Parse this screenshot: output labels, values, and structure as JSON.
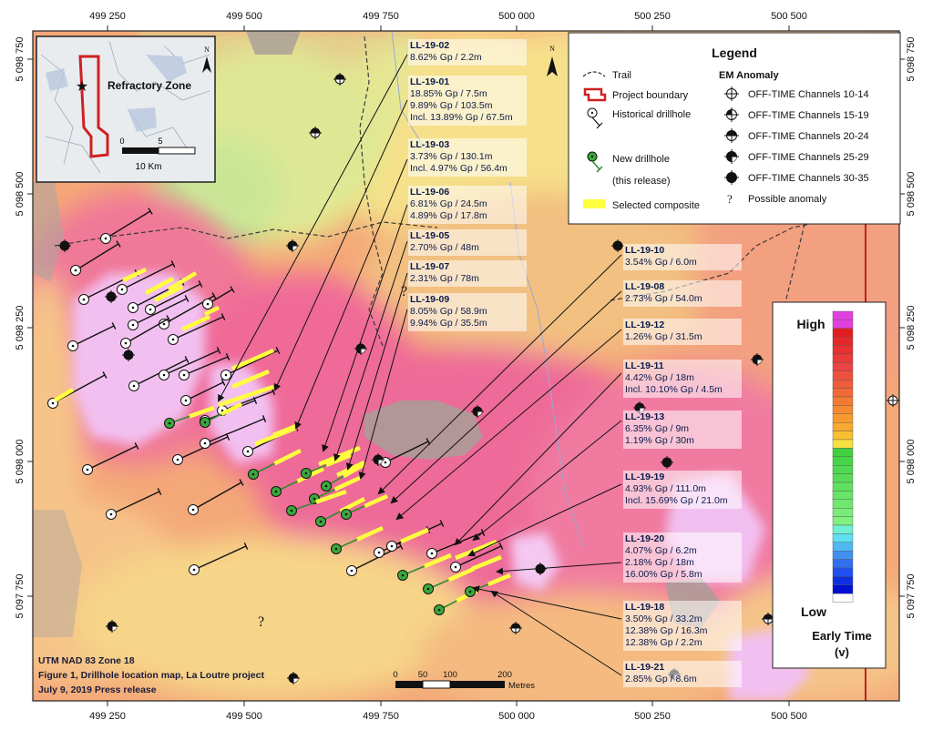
{
  "coords": {
    "top": [
      "499 250",
      "499 500",
      "499 750",
      "500 000",
      "500 250",
      "500 500"
    ],
    "bottom": [
      "499 250",
      "499 500",
      "499 750",
      "500 000",
      "500 250",
      "500 500"
    ],
    "left": [
      "5 098 750",
      "5 098 500",
      "5 098 250",
      "5 098 000",
      "5 097 750"
    ],
    "right": [
      "5 098 750",
      "5 098 500",
      "5 098 250",
      "5 098 000",
      "5 097 750"
    ]
  },
  "inset": {
    "zone_label": "Refractory Zone",
    "scale_0": "0",
    "scale_5": "5",
    "scale_unit": "10 Km",
    "north": "N"
  },
  "north_main": "N",
  "legend": {
    "title": "Legend",
    "trail": "Trail",
    "project_boundary": "Project boundary",
    "historical": "Historical drillhole",
    "new_drillhole_1": "New drillhole",
    "new_drillhole_2": "(this release)",
    "composite": "Selected composite",
    "em_title": "EM Anomaly",
    "em_items": [
      "OFF-TIME Channels 10-14",
      "OFF-TIME Channels 15-19",
      "OFF-TIME Channels 20-24",
      "OFF-TIME Channels 25-29",
      "OFF-TIME Channels 30-35"
    ],
    "possible": "Possible anomaly",
    "possible_symbol": "?"
  },
  "colorbar": {
    "high": "High",
    "low": "Low",
    "caption_1": "Early Time",
    "caption_2": "(v)"
  },
  "drill_labels": [
    {
      "title": "LL-19-02",
      "lines": [
        "8.62% Gp / 2.2m"
      ]
    },
    {
      "title": "LL-19-01",
      "lines": [
        "18.85% Gp / 7.5m",
        "9.89% Gp / 103.5m",
        "Incl. 13.89% Gp / 67.5m"
      ]
    },
    {
      "title": "LL-19-03",
      "lines": [
        "3.73% Gp / 130.1m",
        "Incl. 4.97% Gp / 56.4m"
      ]
    },
    {
      "title": "LL-19-06",
      "lines": [
        "6.81% Gp / 24.5m",
        "4.89% Gp / 17.8m"
      ]
    },
    {
      "title": "LL-19-05",
      "lines": [
        "2.70% Gp / 48m"
      ]
    },
    {
      "title": "LL-19-07",
      "lines": [
        "2.31% Gp / 78m"
      ]
    },
    {
      "title": "LL-19-09",
      "lines": [
        "8.05% Gp / 58.9m",
        "9.94% Gp / 35.5m"
      ]
    },
    {
      "title": "LL-19-10",
      "lines": [
        "3.54% Gp / 6.0m"
      ]
    },
    {
      "title": "LL-19-08",
      "lines": [
        "2.73% Gp / 54.0m"
      ]
    },
    {
      "title": "LL-19-12",
      "lines": [
        "1.26% Gp / 31.5m"
      ]
    },
    {
      "title": "LL-19-11",
      "lines": [
        "4.42% Gp / 18m",
        "Incl. 10.10% Gp / 4.5m"
      ]
    },
    {
      "title": "LL-19-13",
      "lines": [
        "6.35% Gp / 9m",
        "1.19% Gp / 30m"
      ]
    },
    {
      "title": "LL-19-19",
      "lines": [
        "4.93% Gp / 111.0m",
        "Incl. 15.69% Gp / 21.0m"
      ]
    },
    {
      "title": "LL-19-20",
      "lines": [
        "4.07% Gp / 6.2m",
        "2.18% Gp / 18m",
        "16.00% Gp / 5.8m"
      ]
    },
    {
      "title": "LL-19-18",
      "lines": [
        "3.50% Gp / 33.2m",
        "12.38% Gp / 16.3m",
        "12.38% Gp / 2.2m"
      ]
    },
    {
      "title": "LL-19-21",
      "lines": [
        "2.85% Gp / 8.6m"
      ]
    }
  ],
  "map_question_marks": [
    "?",
    "?"
  ],
  "scalebar": {
    "ticks": [
      "0",
      "50",
      "100",
      "200"
    ],
    "unit": "Metres"
  },
  "footer": [
    "UTM NAD 83 Zone 18",
    "Figure 1, Drillhole location map, La Loutre project",
    "July 9, 2019 Press release"
  ],
  "colors": {
    "high": "#e040e0",
    "pink": "#f0609a",
    "orange": "#f4a070",
    "yellow": "#f8e070",
    "green": "#b8e890",
    "grey": "#a89e98",
    "lilac": "#f0b8f0",
    "label_text": "#0b1a4a",
    "boundary": "#c02020",
    "composite": "#ffff40",
    "new_hole": "#2e8b2e"
  }
}
